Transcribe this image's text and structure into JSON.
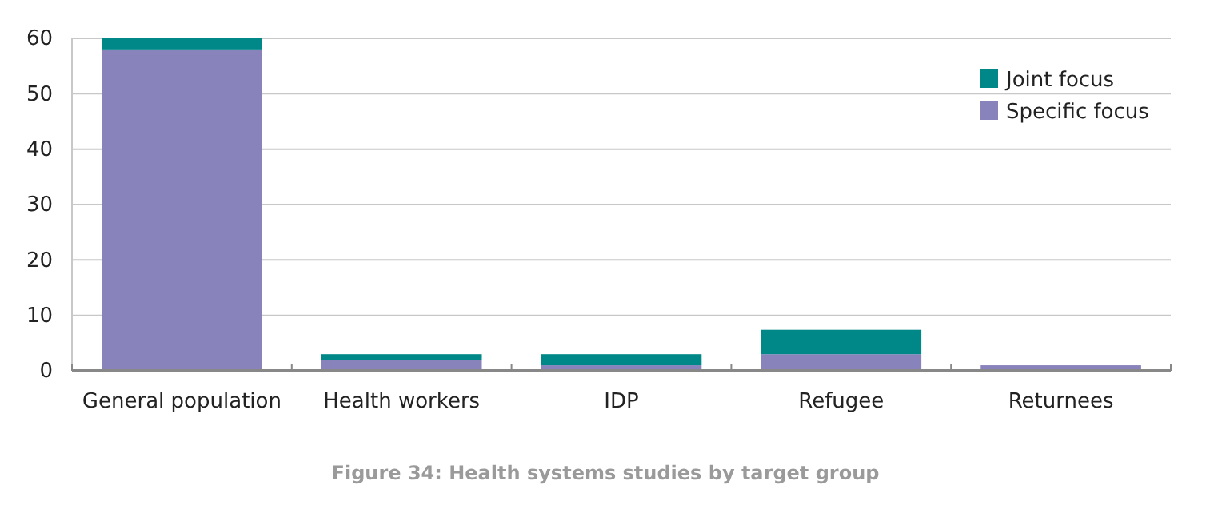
{
  "chart_data": {
    "type": "bar",
    "title": "Figure 34: Health systems studies by target group",
    "categories": [
      "General population",
      "Health workers",
      "IDP",
      "Refugee",
      "Returnees"
    ],
    "stacked": true,
    "series": [
      {
        "name": "Specific focus",
        "color": "#8983bb",
        "values": [
          58,
          2,
          1,
          3,
          1
        ]
      },
      {
        "name": "Joint focus",
        "color": "#008888",
        "values": [
          2,
          1,
          2,
          4.4,
          0
        ]
      }
    ],
    "ylim": [
      0,
      60
    ],
    "yticks": [
      0,
      10,
      20,
      30,
      40,
      50,
      60
    ],
    "grid": "y",
    "legend": "top right"
  }
}
